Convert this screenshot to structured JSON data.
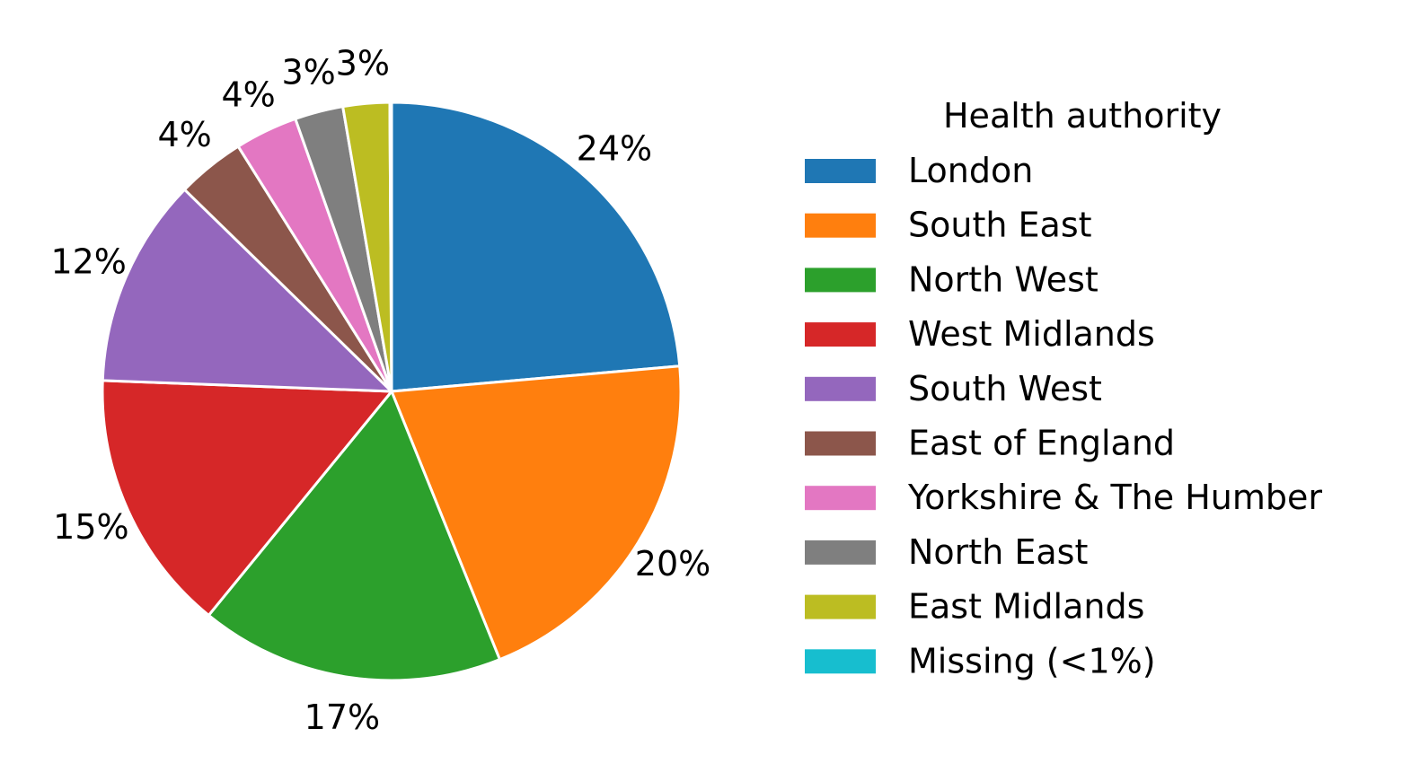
{
  "chart_data": {
    "type": "pie",
    "start_angle_deg": 90,
    "direction": "clockwise",
    "legend": {
      "title": "Health authority",
      "placement": "right"
    },
    "slices": [
      {
        "name": "London",
        "value": 23.6,
        "label": "24%",
        "color": "#1f77b4"
      },
      {
        "name": "South East",
        "value": 20.3,
        "label": "20%",
        "color": "#ff7f0e"
      },
      {
        "name": "North West",
        "value": 17.0,
        "label": "17%",
        "color": "#2ca02c"
      },
      {
        "name": "West Midlands",
        "value": 14.7,
        "label": "15%",
        "color": "#d62728"
      },
      {
        "name": "South West",
        "value": 11.7,
        "label": "12%",
        "color": "#9467bd"
      },
      {
        "name": "East of England",
        "value": 3.8,
        "label": "4%",
        "color": "#8c564b"
      },
      {
        "name": "Yorkshire & The Humber",
        "value": 3.5,
        "label": "4%",
        "color": "#e377c2"
      },
      {
        "name": "North East",
        "value": 2.7,
        "label": "3%",
        "color": "#7f7f7f"
      },
      {
        "name": "East Midlands",
        "value": 2.6,
        "label": "3%",
        "color": "#bcbd22"
      },
      {
        "name": "Missing (<1%)",
        "value": 0.1,
        "label": "",
        "color": "#17becf"
      }
    ]
  }
}
